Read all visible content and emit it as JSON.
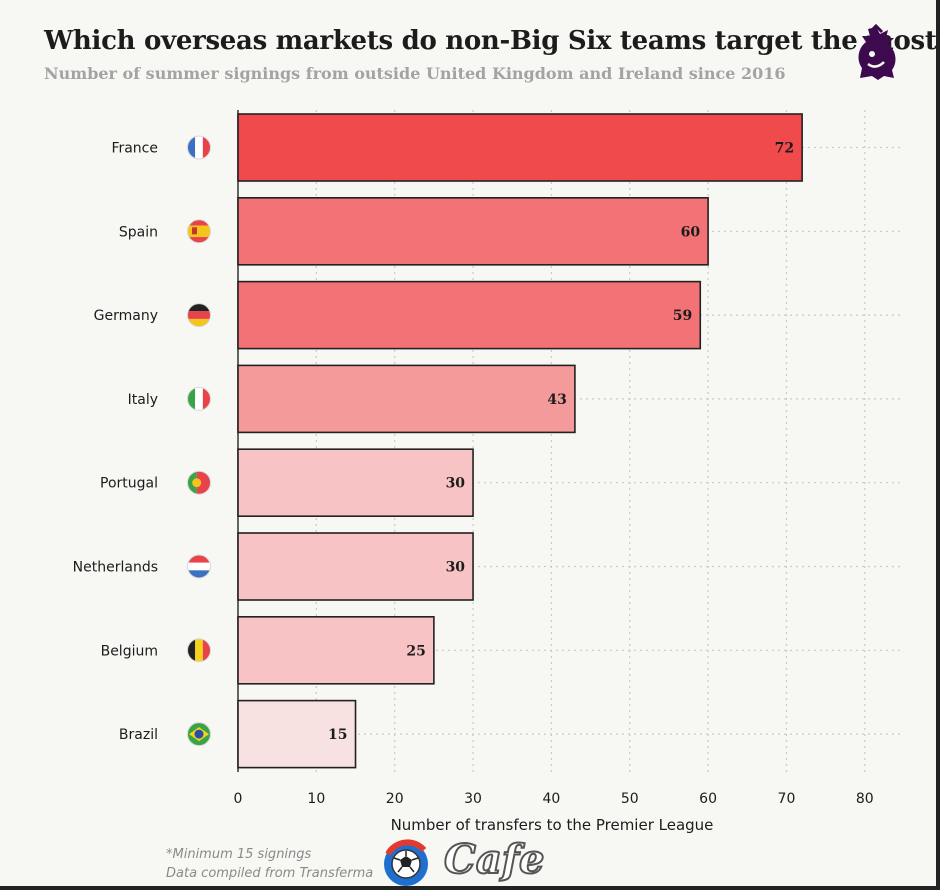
{
  "title": "Which overseas markets do non-Big Six teams target the most?",
  "subtitle": "Number of summer signings from outside United Kingdom and Ireland since 2016",
  "logo_icon": "premier-league-lion-icon",
  "footnotes": [
    "*Minimum 15 signings",
    "Data compiled from Transferma"
  ],
  "watermark": {
    "icon": "football-icon",
    "text": "Cafe"
  },
  "colors": {
    "bar_strong": "#f04a4d",
    "bar_mid": "#f27275",
    "bar_light": "#f49a9b",
    "bar_pale": "#f8c3c4",
    "bar_faint": "#f7e1e1"
  },
  "chart_data": {
    "type": "bar",
    "orientation": "horizontal",
    "categories": [
      "France",
      "Spain",
      "Germany",
      "Italy",
      "Portugal",
      "Netherlands",
      "Belgium",
      "Brazil"
    ],
    "values": [
      72,
      60,
      59,
      43,
      30,
      30,
      25,
      15
    ],
    "flags": [
      "france-flag-icon",
      "spain-flag-icon",
      "germany-flag-icon",
      "italy-flag-icon",
      "portugal-flag-icon",
      "netherlands-flag-icon",
      "belgium-flag-icon",
      "brazil-flag-icon"
    ],
    "xlabel": "Number of transfers to the Premier League",
    "xlim": [
      0,
      80
    ],
    "xticks": [
      "0",
      "10",
      "20",
      "30",
      "40",
      "50",
      "60",
      "70",
      "80"
    ],
    "grid": true,
    "data_labels": true
  }
}
